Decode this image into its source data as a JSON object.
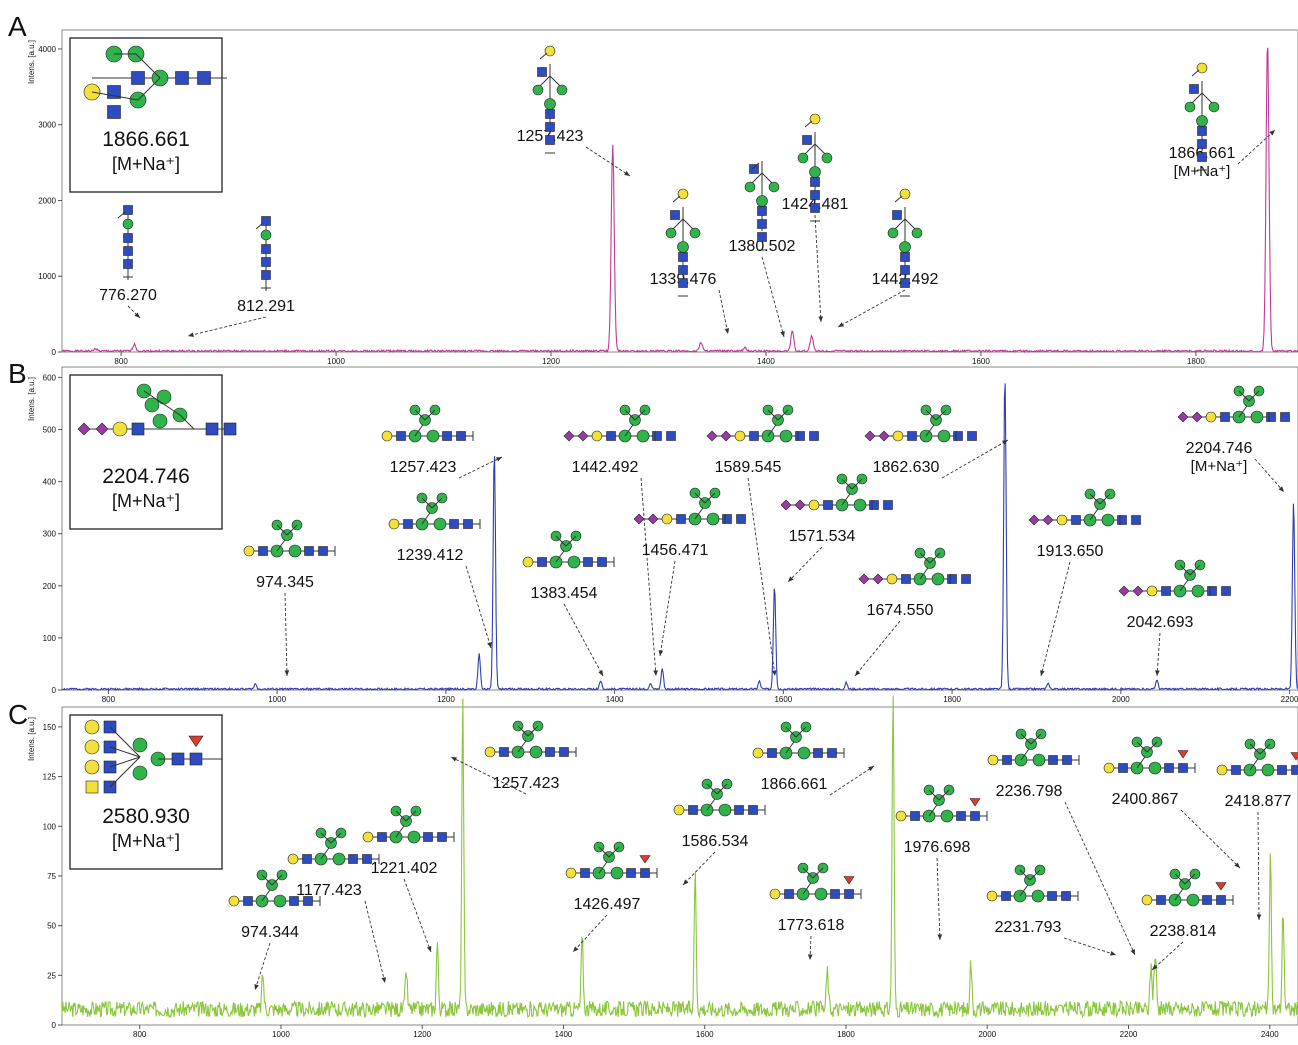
{
  "chart_data": [
    {
      "type": "line",
      "panel_letter": "A",
      "ylabel": "Intens. [a.u.]",
      "color": "#c0399a",
      "xlim": [
        745,
        1895
      ],
      "ylim": [
        0,
        4250
      ],
      "xticks": [
        800,
        1000,
        1200,
        1400,
        1600,
        1800
      ],
      "yticks": [
        0,
        1000,
        2000,
        3000,
        4000
      ],
      "peaks": [
        {
          "x": 776.27,
          "y": 35
        },
        {
          "x": 812.29,
          "y": 90
        },
        {
          "x": 1257.42,
          "y": 2720
        },
        {
          "x": 1339.48,
          "y": 120
        },
        {
          "x": 1380.5,
          "y": 40
        },
        {
          "x": 1424.48,
          "y": 260
        },
        {
          "x": 1442.49,
          "y": 200
        },
        {
          "x": 1866.66,
          "y": 4100
        }
      ],
      "annotations": [
        {
          "label": "776.270",
          "x": 776.27,
          "sub": ""
        },
        {
          "label": "812.291",
          "x": 812.29,
          "sub": ""
        },
        {
          "label": "1257.423",
          "x": 1257.42,
          "sub": ""
        },
        {
          "label": "1339.476",
          "x": 1339.48,
          "sub": ""
        },
        {
          "label": "1380.502",
          "x": 1380.5,
          "sub": ""
        },
        {
          "label": "1424.481",
          "x": 1424.48,
          "sub": ""
        },
        {
          "label": "1442.492",
          "x": 1442.49,
          "sub": ""
        },
        {
          "label": "1866.661",
          "x": 1866.66,
          "sub": "[M+Na⁺]"
        }
      ],
      "inset": {
        "mass": "1866.661",
        "adduct": "[M+Na⁺]"
      }
    },
    {
      "type": "line",
      "panel_letter": "B",
      "ylabel": "Intens. [a.u.]",
      "color": "#2f3fb0",
      "xlim": [
        745,
        2210
      ],
      "ylim": [
        0,
        620
      ],
      "xticks": [
        800,
        1000,
        1200,
        1400,
        1600,
        1800,
        2000,
        2200
      ],
      "yticks": [
        0,
        100,
        200,
        300,
        400,
        500,
        600
      ],
      "peaks": [
        {
          "x": 974.35,
          "y": 10
        },
        {
          "x": 1239.41,
          "y": 70
        },
        {
          "x": 1257.42,
          "y": 460
        },
        {
          "x": 1383.45,
          "y": 15
        },
        {
          "x": 1442.49,
          "y": 12
        },
        {
          "x": 1456.47,
          "y": 40
        },
        {
          "x": 1571.53,
          "y": 15
        },
        {
          "x": 1589.55,
          "y": 200
        },
        {
          "x": 1674.55,
          "y": 12
        },
        {
          "x": 1862.63,
          "y": 605
        },
        {
          "x": 1913.65,
          "y": 12
        },
        {
          "x": 2042.69,
          "y": 18
        },
        {
          "x": 2204.75,
          "y": 360
        }
      ],
      "annotations": [
        {
          "label": "974.345",
          "x": 974.35
        },
        {
          "label": "1257.423",
          "x": 1257.42
        },
        {
          "label": "1239.412",
          "x": 1239.41
        },
        {
          "label": "1383.454",
          "x": 1383.45
        },
        {
          "label": "1442.492",
          "x": 1442.49
        },
        {
          "label": "1456.471",
          "x": 1456.47
        },
        {
          "label": "1589.545",
          "x": 1589.55
        },
        {
          "label": "1571.534",
          "x": 1571.53
        },
        {
          "label": "1674.550",
          "x": 1674.55
        },
        {
          "label": "1862.630",
          "x": 1862.63
        },
        {
          "label": "1913.650",
          "x": 1913.65
        },
        {
          "label": "2042.693",
          "x": 2042.69
        },
        {
          "label": "2204.746",
          "x": 2204.75,
          "sub": "[M+Na⁺]"
        }
      ],
      "inset": {
        "mass": "2204.746",
        "adduct": "[M+Na⁺]"
      }
    },
    {
      "type": "line",
      "panel_letter": "C",
      "ylabel": "Intens. [a.u.]",
      "color": "#8cc63f",
      "xlim": [
        690,
        2440
      ],
      "ylim": [
        0,
        160
      ],
      "xticks": [
        800,
        1000,
        1200,
        1400,
        1600,
        1800,
        2000,
        2200,
        2400
      ],
      "yticks": [
        0,
        25,
        50,
        75,
        100,
        125,
        150
      ],
      "peaks": [
        {
          "x": 974.34,
          "y": 18
        },
        {
          "x": 1177.42,
          "y": 20
        },
        {
          "x": 1221.4,
          "y": 34
        },
        {
          "x": 1257.42,
          "y": 155
        },
        {
          "x": 1426.5,
          "y": 36
        },
        {
          "x": 1586.53,
          "y": 70
        },
        {
          "x": 1773.62,
          "y": 20
        },
        {
          "x": 1866.66,
          "y": 158
        },
        {
          "x": 1976.7,
          "y": 24
        },
        {
          "x": 2231.79,
          "y": 22
        },
        {
          "x": 2236.8,
          "y": 18
        },
        {
          "x": 2238.81,
          "y": 16
        },
        {
          "x": 2400.87,
          "y": 76
        },
        {
          "x": 2418.88,
          "y": 50
        }
      ],
      "annotations": [
        {
          "label": "974.344",
          "x": 974.34
        },
        {
          "label": "1177.423",
          "x": 1177.42
        },
        {
          "label": "1221.402",
          "x": 1221.4
        },
        {
          "label": "1257.423",
          "x": 1257.42
        },
        {
          "label": "1426.497",
          "x": 1426.5
        },
        {
          "label": "1586.534",
          "x": 1586.53
        },
        {
          "label": "1773.618",
          "x": 1773.62
        },
        {
          "label": "1866.661",
          "x": 1866.66
        },
        {
          "label": "1976.698",
          "x": 1976.7
        },
        {
          "label": "2236.798",
          "x": 2236.8
        },
        {
          "label": "2231.793",
          "x": 2231.79
        },
        {
          "label": "2238.814",
          "x": 2238.81
        },
        {
          "label": "2400.867",
          "x": 2400.87
        },
        {
          "label": "2418.877",
          "x": 2418.88
        }
      ],
      "inset": {
        "mass": "2580.930",
        "adduct": "[M+Na⁺]"
      }
    }
  ],
  "colors": {
    "glcnac": "#2e4cc0",
    "mannose": "#2fb34a",
    "galactose": "#f3e03b",
    "galnac": "#f3e03b",
    "sialic_acid": "#9a3aa5",
    "fucose": "#e23b2e",
    "arrow": "#333333"
  }
}
